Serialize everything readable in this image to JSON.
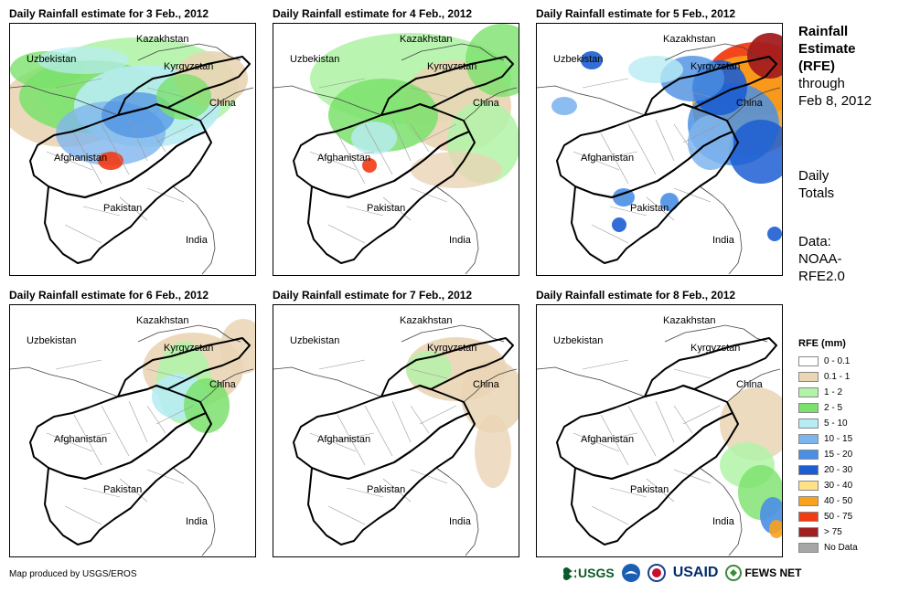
{
  "panels": [
    {
      "title": "Daily Rainfall estimate for 3 Feb., 2012",
      "scenario": "wet-widespread"
    },
    {
      "title": "Daily Rainfall estimate for 4 Feb., 2012",
      "scenario": "moderate"
    },
    {
      "title": "Daily Rainfall estimate for 5 Feb., 2012",
      "scenario": "heavy-northeast"
    },
    {
      "title": "Daily Rainfall estimate for 6 Feb., 2012",
      "scenario": "light-north"
    },
    {
      "title": "Daily Rainfall estimate for 7 Feb., 2012",
      "scenario": "light"
    },
    {
      "title": "Daily Rainfall estimate for 8 Feb., 2012",
      "scenario": "southeast"
    }
  ],
  "map_labels": {
    "kazakhstan": "Kazakhstan",
    "uzbekistan": "Uzbekistan",
    "kyrgyzstan": "Kyrgyzstan",
    "china": "China",
    "afghanistan": "Afghanistan",
    "pakistan": "Pakistan",
    "india": "India"
  },
  "side": {
    "title_line1": "Rainfall",
    "title_line2": "Estimate",
    "title_line3": "(RFE)",
    "through": "through",
    "date": "Feb 8, 2012",
    "totals_line1": "Daily",
    "totals_line2": "Totals",
    "data_line1": "Data:",
    "data_line2": "NOAA-",
    "data_line3": "RFE2.0"
  },
  "legend": {
    "title": "RFE (mm)",
    "items": [
      {
        "label": "0 - 0.1",
        "color": "#ffffff"
      },
      {
        "label": "0.1 - 1",
        "color": "#ead5b5"
      },
      {
        "label": "1 - 2",
        "color": "#b2f3a8"
      },
      {
        "label": "2 - 5",
        "color": "#7be16c"
      },
      {
        "label": "5 - 10",
        "color": "#b8ecf4"
      },
      {
        "label": "10 - 15",
        "color": "#7fb5ee"
      },
      {
        "label": "15 - 20",
        "color": "#4a8fe4"
      },
      {
        "label": "20 - 30",
        "color": "#1c5ed2"
      },
      {
        "label": "30 - 40",
        "color": "#fde28a"
      },
      {
        "label": "40 - 50",
        "color": "#f9a21b"
      },
      {
        "label": "50 - 75",
        "color": "#f23b12"
      },
      {
        "label": "> 75",
        "color": "#a31e1e"
      },
      {
        "label": "No Data",
        "color": "#a6a6a6"
      }
    ]
  },
  "footer": {
    "credit": "Map produced by USGS/EROS",
    "logos": [
      "USGS",
      "NOAA",
      "USAID",
      "FEWS NET"
    ]
  }
}
